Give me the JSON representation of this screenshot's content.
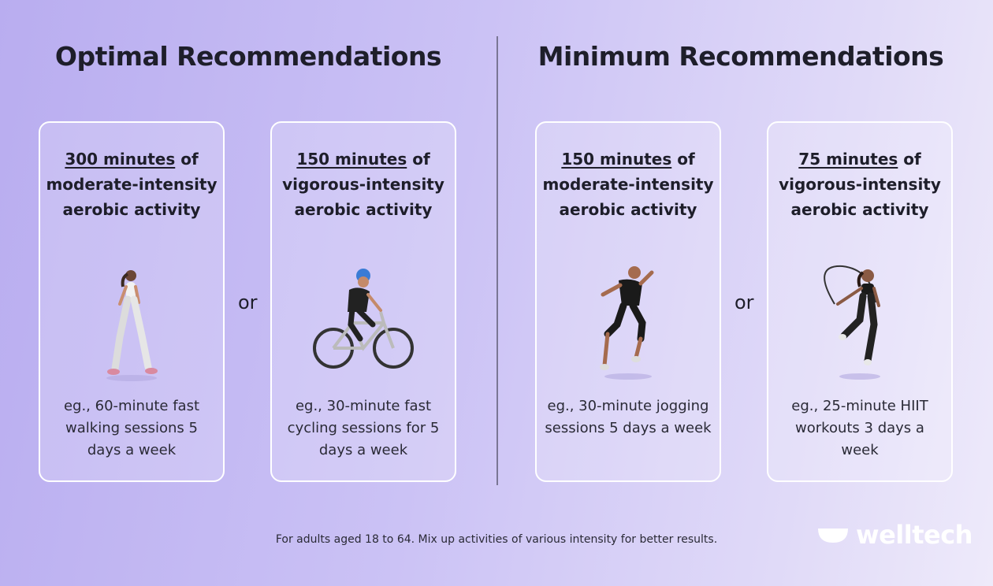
{
  "optimal": {
    "title": "Optimal Recommendations",
    "cards": [
      {
        "highlight": "300 minutes",
        "rest": " of moderate-intensity aerobic activity",
        "example": "eg., 60-minute fast walking sessions 5 days a week",
        "figure": "walking-woman"
      },
      {
        "highlight": "150 minutes",
        "rest": " of vigorous-intensity aerobic activity",
        "example": "eg., 30-minute fast cycling sessions for 5 days a week",
        "figure": "cyclist"
      }
    ],
    "or": "or"
  },
  "minimum": {
    "title": "Minimum Recommendations",
    "cards": [
      {
        "highlight": "150 minutes",
        "rest": " of moderate-intensity aerobic activity",
        "example": "eg., 30-minute jogging sessions 5 days a week",
        "figure": "runner"
      },
      {
        "highlight": "75 minutes",
        "rest": " of vigorous-intensity aerobic activity",
        "example": "eg., 25-minute HIIT workouts 3 days a week",
        "figure": "jump-rope-woman"
      }
    ],
    "or": "or"
  },
  "footnote": "For adults aged 18 to 64. Mix up activities of various intensity for better results.",
  "brand": {
    "name": "welltech",
    "color": "#ffffff"
  },
  "colors": {
    "bg_start": "#b9adf0",
    "bg_end": "#eeeafa",
    "text": "#1e1e2a"
  }
}
